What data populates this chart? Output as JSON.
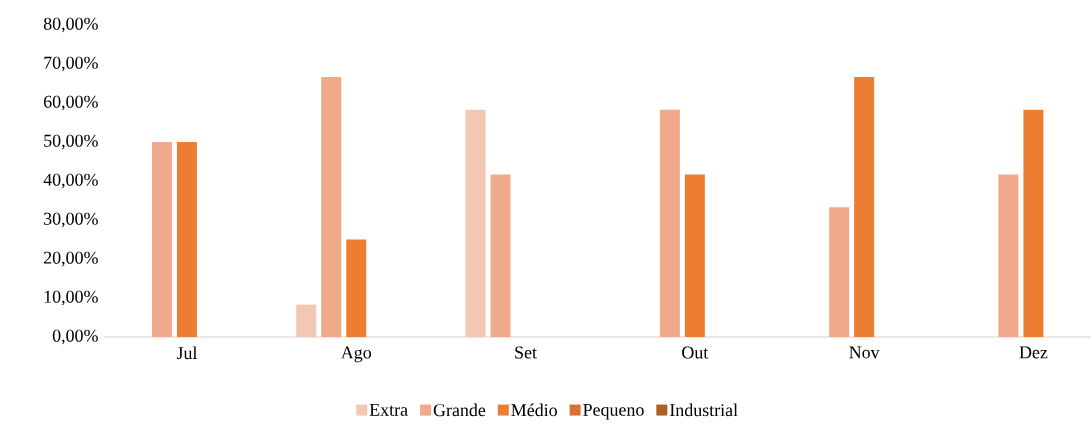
{
  "chart_data": {
    "type": "bar",
    "categories": [
      "Jul",
      "Ago",
      "Set",
      "Out",
      "Nov",
      "Dez"
    ],
    "series": [
      {
        "name": "Extra",
        "color": "#f4c7b5",
        "values": [
          0,
          8.3,
          58.3,
          0,
          0,
          0
        ]
      },
      {
        "name": "Grande",
        "color": "#f0a98a",
        "values": [
          50,
          66.7,
          41.7,
          58.3,
          33.3,
          41.7
        ]
      },
      {
        "name": "Médio",
        "color": "#ed7d31",
        "values": [
          50,
          25,
          0,
          41.7,
          66.7,
          58.3
        ]
      },
      {
        "name": "Pequeno",
        "color": "#d9712e",
        "values": [
          0,
          0,
          0,
          0,
          0,
          0
        ]
      },
      {
        "name": "Industrial",
        "color": "#b15e26",
        "values": [
          0,
          0,
          0,
          0,
          0,
          0
        ]
      }
    ],
    "ylim": [
      0,
      80
    ],
    "yticks": [
      {
        "value": 0,
        "label": "0,00%"
      },
      {
        "value": 10,
        "label": "10,00%"
      },
      {
        "value": 20,
        "label": "20,00%"
      },
      {
        "value": 30,
        "label": "30,00%"
      },
      {
        "value": 40,
        "label": "40,00%"
      },
      {
        "value": 50,
        "label": "50,00%"
      },
      {
        "value": 60,
        "label": "60,00%"
      },
      {
        "value": 70,
        "label": "70,00%"
      },
      {
        "value": 80,
        "label": "80,00%"
      }
    ],
    "legend": "bottom"
  }
}
